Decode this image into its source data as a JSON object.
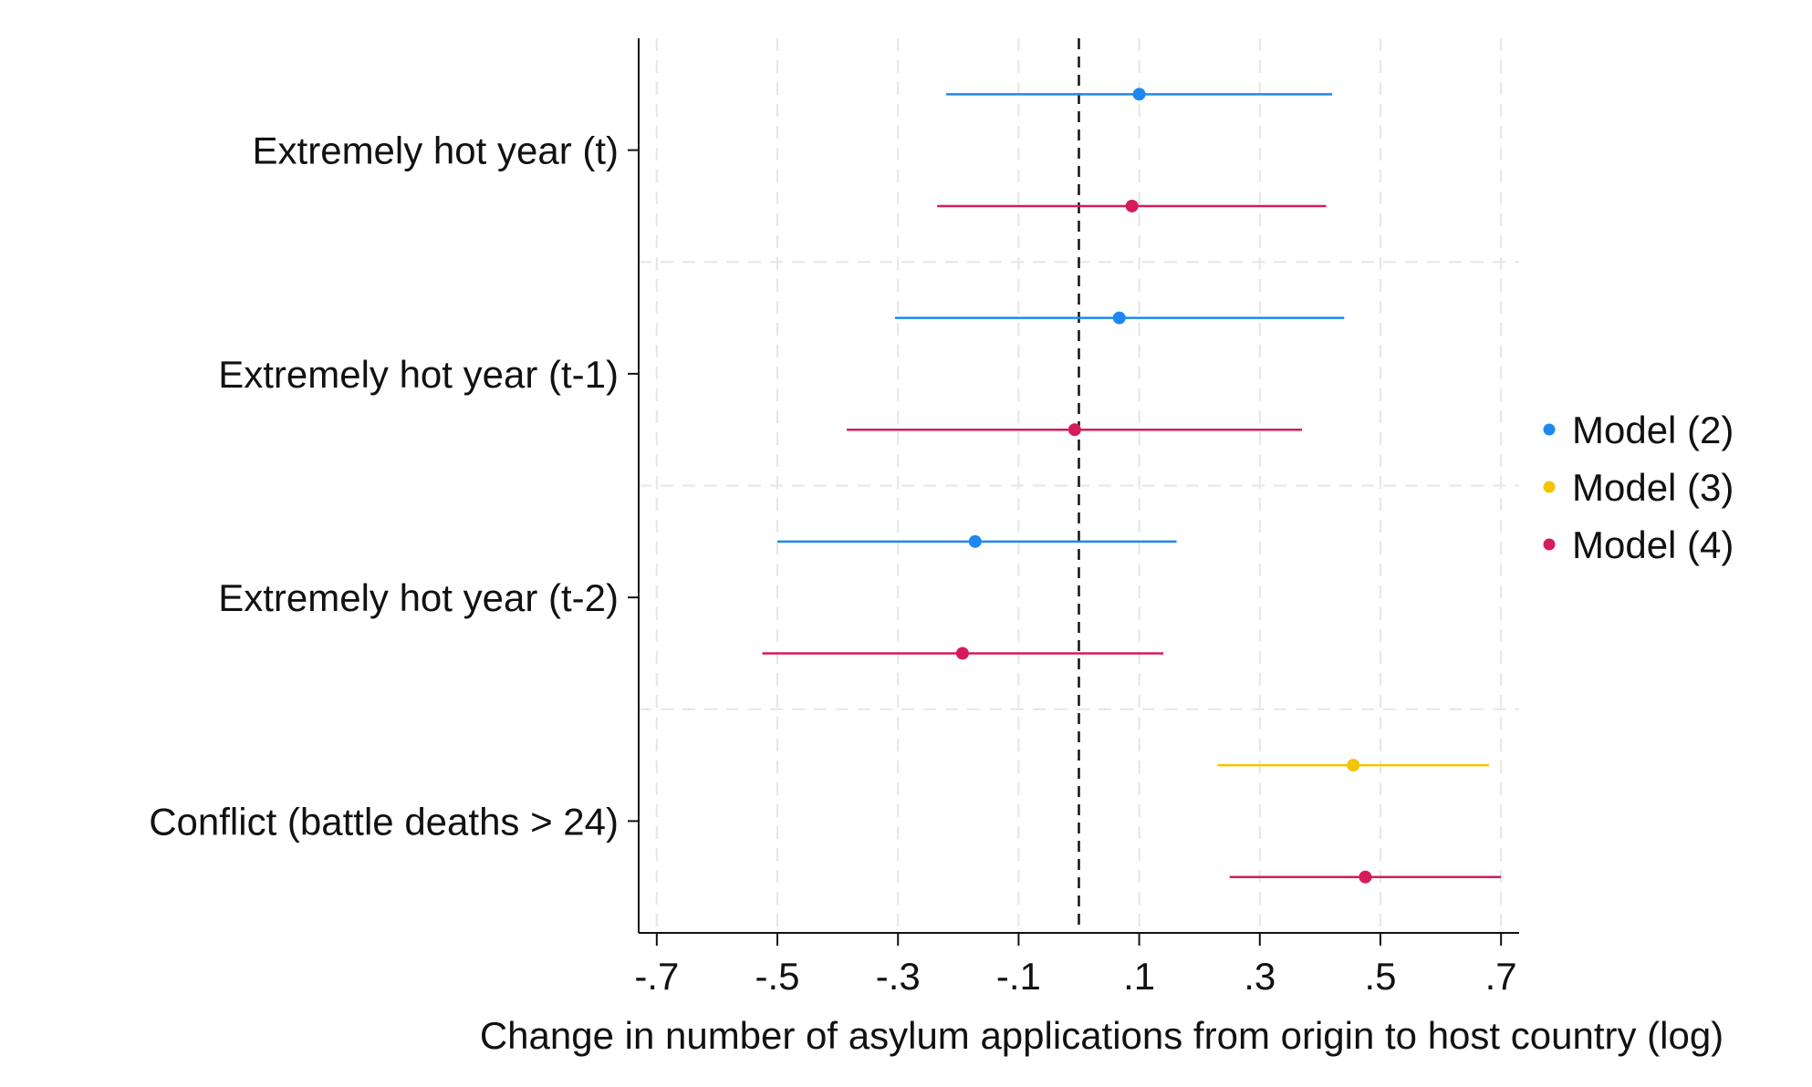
{
  "chart_data": {
    "type": "coefficient-plot",
    "orientation": "horizontal",
    "xlabel": "Change in number of asylum applications from origin to host country (log)",
    "ylabel": "",
    "xlim": [
      -0.73,
      0.73
    ],
    "xticks": [
      -0.7,
      -0.5,
      -0.3,
      -0.1,
      0.1,
      0.3,
      0.5,
      0.7
    ],
    "xtick_labels": [
      "-.7",
      "-.5",
      "-.3",
      "-.1",
      ".1",
      ".3",
      ".5",
      ".7"
    ],
    "reference_line": 0,
    "grid": true,
    "legend_position": "right",
    "categories": [
      "Extremely hot year (t)",
      "Extremely hot year (t-1)",
      "Extremely hot year (t-2)",
      "Conflict (battle deaths > 24)"
    ],
    "series": [
      {
        "name": "Model (2)",
        "color": "#1e88f0",
        "points": [
          {
            "category": 0,
            "estimate": 0.1,
            "ci": [
              -0.22,
              0.42
            ]
          },
          {
            "category": 1,
            "estimate": 0.067,
            "ci": [
              -0.305,
              0.44
            ]
          },
          {
            "category": 2,
            "estimate": -0.172,
            "ci": [
              -0.5,
              0.162
            ]
          }
        ]
      },
      {
        "name": "Model (3)",
        "color": "#f5c400",
        "points": [
          {
            "category": 3,
            "estimate": 0.455,
            "ci": [
              0.23,
              0.68
            ]
          }
        ]
      },
      {
        "name": "Model (4)",
        "color": "#d61b5a",
        "points": [
          {
            "category": 0,
            "estimate": 0.088,
            "ci": [
              -0.235,
              0.41
            ]
          },
          {
            "category": 1,
            "estimate": -0.007,
            "ci": [
              -0.385,
              0.37
            ]
          },
          {
            "category": 2,
            "estimate": -0.193,
            "ci": [
              -0.525,
              0.14
            ]
          },
          {
            "category": 3,
            "estimate": 0.475,
            "ci": [
              0.25,
              0.7
            ]
          }
        ]
      }
    ]
  }
}
